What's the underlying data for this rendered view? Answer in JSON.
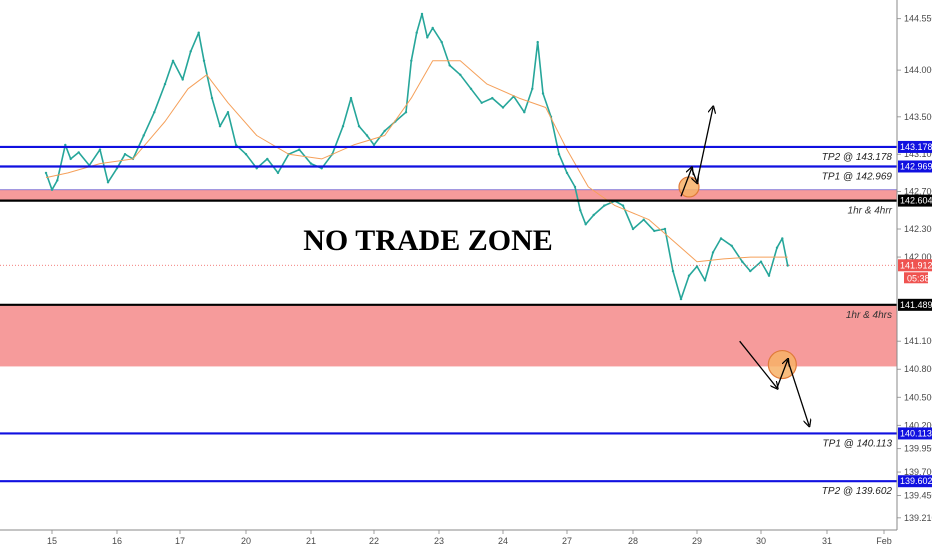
{
  "chart_data": {
    "type": "line",
    "title": "",
    "xlabel": "",
    "ylabel": "",
    "x_ticks": [
      "15",
      "16",
      "17",
      "20",
      "21",
      "22",
      "23",
      "24",
      "27",
      "28",
      "29",
      "30",
      "31",
      "Feb"
    ],
    "y_ticks": [
      "144.550",
      "144.000",
      "143.500",
      "143.100",
      "142.700",
      "142.300",
      "142.000",
      "141.100",
      "140.800",
      "140.500",
      "140.200",
      "139.950",
      "139.700",
      "139.450",
      "139.210"
    ],
    "ylim": [
      139.08,
      144.75
    ],
    "grid": false,
    "series": [
      {
        "color": "#26a69a",
        "points": [
          [
            "14 21:00",
            142.9
          ],
          [
            "15 00:00",
            142.72
          ],
          [
            "15 02:00",
            142.82
          ],
          [
            "15 05:00",
            143.2
          ],
          [
            "15 07:00",
            143.05
          ],
          [
            "15 10:00",
            143.12
          ],
          [
            "15 14:00",
            142.98
          ],
          [
            "15 18:00",
            143.15
          ],
          [
            "15 21:00",
            142.8
          ],
          [
            "16 00:00",
            142.95
          ],
          [
            "16 03:00",
            143.1
          ],
          [
            "16 06:00",
            143.05
          ],
          [
            "16 10:00",
            143.3
          ],
          [
            "16 14:00",
            143.55
          ],
          [
            "16 18:00",
            143.85
          ],
          [
            "16 21:00",
            144.1
          ],
          [
            "17 01:00",
            143.9
          ],
          [
            "17 04:00",
            144.2
          ],
          [
            "17 07:00",
            144.4
          ],
          [
            "17 09:00",
            144.1
          ],
          [
            "17 12:00",
            143.7
          ],
          [
            "17 15:00",
            143.4
          ],
          [
            "17 18:00",
            143.55
          ],
          [
            "17 21:00",
            143.2
          ],
          [
            "20 00:00",
            143.1
          ],
          [
            "20 04:00",
            142.95
          ],
          [
            "20 08:00",
            143.05
          ],
          [
            "20 12:00",
            142.9
          ],
          [
            "20 16:00",
            143.1
          ],
          [
            "20 20:00",
            143.15
          ],
          [
            "21 00:00",
            143.0
          ],
          [
            "21 04:00",
            142.95
          ],
          [
            "21 08:00",
            143.1
          ],
          [
            "21 12:00",
            143.4
          ],
          [
            "21 15:00",
            143.7
          ],
          [
            "21 18:00",
            143.4
          ],
          [
            "21 21:00",
            143.3
          ],
          [
            "22 00:00",
            143.2
          ],
          [
            "22 04:00",
            143.35
          ],
          [
            "22 08:00",
            143.45
          ],
          [
            "22 12:00",
            143.55
          ],
          [
            "22 14:00",
            144.1
          ],
          [
            "22 16:00",
            144.4
          ],
          [
            "22 18:00",
            144.6
          ],
          [
            "22 20:00",
            144.35
          ],
          [
            "22 22:00",
            144.45
          ],
          [
            "23 01:00",
            144.3
          ],
          [
            "23 04:00",
            144.05
          ],
          [
            "23 08:00",
            143.95
          ],
          [
            "23 12:00",
            143.8
          ],
          [
            "23 16:00",
            143.65
          ],
          [
            "23 20:00",
            143.7
          ],
          [
            "24 00:00",
            143.6
          ],
          [
            "24 04:00",
            143.72
          ],
          [
            "24 08:00",
            143.55
          ],
          [
            "24 11:00",
            143.8
          ],
          [
            "24 13:00",
            144.3
          ],
          [
            "24 15:00",
            143.75
          ],
          [
            "24 18:00",
            143.5
          ],
          [
            "24 21:00",
            143.1
          ],
          [
            "27 00:00",
            142.9
          ],
          [
            "27 03:00",
            142.75
          ],
          [
            "27 05:00",
            142.5
          ],
          [
            "27 07:00",
            142.35
          ],
          [
            "27 10:00",
            142.45
          ],
          [
            "27 14:00",
            142.55
          ],
          [
            "27 18:00",
            142.6
          ],
          [
            "27 21:00",
            142.55
          ],
          [
            "28 00:00",
            142.3
          ],
          [
            "28 04:00",
            142.4
          ],
          [
            "28 08:00",
            142.28
          ],
          [
            "28 12:00",
            142.3
          ],
          [
            "28 15:00",
            141.85
          ],
          [
            "28 18:00",
            141.55
          ],
          [
            "28 21:00",
            141.8
          ],
          [
            "29 00:00",
            141.9
          ],
          [
            "29 03:00",
            141.75
          ],
          [
            "29 06:00",
            142.05
          ],
          [
            "29 09:00",
            142.2
          ],
          [
            "29 13:00",
            142.12
          ],
          [
            "29 17:00",
            141.95
          ],
          [
            "29 20:00",
            141.85
          ],
          [
            "30 00:00",
            141.95
          ],
          [
            "30 03:00",
            141.8
          ],
          [
            "30 06:00",
            142.1
          ],
          [
            "30 08:00",
            142.2
          ],
          [
            "30 10:00",
            141.91
          ]
        ]
      },
      {
        "color": "#f5a05a",
        "points": [
          [
            "14 21:00",
            142.85
          ],
          [
            "15 06:00",
            142.9
          ],
          [
            "15 18:00",
            143.0
          ],
          [
            "16 06:00",
            143.05
          ],
          [
            "16 18:00",
            143.45
          ],
          [
            "17 03:00",
            143.8
          ],
          [
            "17 10:00",
            143.95
          ],
          [
            "17 18:00",
            143.65
          ],
          [
            "20 04:00",
            143.3
          ],
          [
            "20 16:00",
            143.1
          ],
          [
            "21 04:00",
            143.05
          ],
          [
            "21 16:00",
            143.2
          ],
          [
            "22 04:00",
            143.3
          ],
          [
            "22 14:00",
            143.7
          ],
          [
            "22 22:00",
            144.1
          ],
          [
            "23 08:00",
            144.1
          ],
          [
            "23 18:00",
            143.85
          ],
          [
            "24 06:00",
            143.7
          ],
          [
            "24 16:00",
            143.6
          ],
          [
            "27 00:00",
            143.15
          ],
          [
            "27 08:00",
            142.75
          ],
          [
            "27 18:00",
            142.55
          ],
          [
            "28 06:00",
            142.4
          ],
          [
            "28 16:00",
            142.15
          ],
          [
            "29 00:00",
            141.95
          ],
          [
            "29 10:00",
            141.98
          ],
          [
            "29 20:00",
            142.0
          ],
          [
            "30 10:00",
            142.0
          ]
        ]
      }
    ],
    "levels": [
      {
        "name": "tp2_high",
        "price": 143.178,
        "color": "#1010e0",
        "label": "TP2 @ 143.178",
        "tag": "143.178"
      },
      {
        "name": "tp1_high",
        "price": 142.969,
        "color": "#1010e0",
        "label": "TP1 @ 142.969",
        "tag": "142.969"
      },
      {
        "name": "resistance",
        "price": 142.604,
        "color": "#000000",
        "label": "1hr & 4hrr",
        "tag": "142.604"
      },
      {
        "name": "support",
        "price": 141.489,
        "color": "#000000",
        "label": "1hr & 4hrs",
        "tag": "141.489"
      },
      {
        "name": "tp1_low",
        "price": 140.113,
        "color": "#1010e0",
        "label": "TP1 @ 140.113",
        "tag": "140.113"
      },
      {
        "name": "tp2_low",
        "price": 139.602,
        "color": "#1010e0",
        "label": "TP2 @ 139.602",
        "tag": "139.602"
      }
    ],
    "zones": [
      {
        "name": "upper-zone",
        "from": 142.604,
        "to": 142.72,
        "color": "#f48a8a"
      },
      {
        "name": "lower-zone",
        "from": 140.83,
        "to": 141.489,
        "color": "#f48a8a"
      }
    ],
    "current_price": {
      "price": 141.912,
      "tag": "141.912",
      "countdown": "05:38",
      "color": "#ef5350"
    },
    "annotation": "NO TRADE ZONE",
    "arrows": [
      {
        "name": "bullish-scenario",
        "points": [
          [
            "28 18:00",
            142.65
          ],
          [
            "28 22:00",
            142.95
          ],
          [
            "29 00:00",
            142.8
          ],
          [
            "29 06:00",
            143.6
          ]
        ],
        "circle_at": [
          "28 21:00",
          142.75
        ]
      },
      {
        "name": "bearish-scenario",
        "points": [
          [
            "29 16:00",
            141.1
          ],
          [
            "30 06:00",
            140.6
          ],
          [
            "30 10:00",
            140.9
          ],
          [
            "30 18:00",
            140.2
          ]
        ],
        "circle_at": [
          "30 08:00",
          140.85
        ]
      }
    ]
  }
}
